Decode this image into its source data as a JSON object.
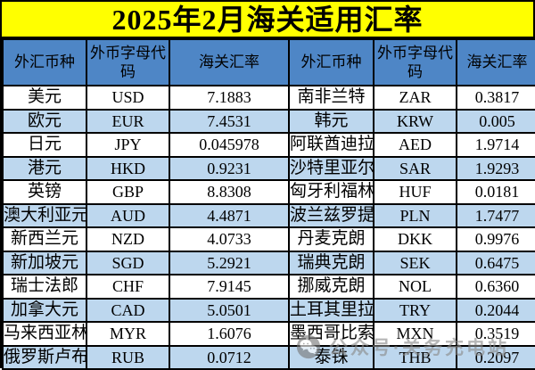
{
  "title": "2025年2月海关适用汇率",
  "header": {
    "currency": "外汇币种",
    "code": "外币字母代码",
    "rate": "海关汇率"
  },
  "rows": [
    {
      "l": [
        "美元",
        "USD",
        "7.1883"
      ],
      "r": [
        "南非兰特",
        "ZAR",
        "0.3817"
      ]
    },
    {
      "l": [
        "欧元",
        "EUR",
        "7.4531"
      ],
      "r": [
        "韩元",
        "KRW",
        "0.005"
      ]
    },
    {
      "l": [
        "日元",
        "JPY",
        "0.045978"
      ],
      "r": [
        "阿联酋迪拉姆",
        "AED",
        "1.9714"
      ]
    },
    {
      "l": [
        "港元",
        "HKD",
        "0.9231"
      ],
      "r": [
        "沙特里亚尔",
        "SAR",
        "1.9293"
      ]
    },
    {
      "l": [
        "英镑",
        "GBP",
        "8.8308"
      ],
      "r": [
        "匈牙利福林",
        "HUF",
        "0.0181"
      ]
    },
    {
      "l": [
        "澳大利亚元",
        "AUD",
        "4.4871"
      ],
      "r": [
        "波兰兹罗提",
        "PLN",
        "1.7477"
      ]
    },
    {
      "l": [
        "新西兰元",
        "NZD",
        "4.0733"
      ],
      "r": [
        "丹麦克朗",
        "DKK",
        "0.9976"
      ]
    },
    {
      "l": [
        "新加坡元",
        "SGD",
        "5.2921"
      ],
      "r": [
        "瑞典克朗",
        "SEK",
        "0.6475"
      ]
    },
    {
      "l": [
        "瑞士法郎",
        "CHF",
        "7.9145"
      ],
      "r": [
        "挪威克朗",
        "NOL",
        "0.6360"
      ]
    },
    {
      "l": [
        "加拿大元",
        "CAD",
        "5.0501"
      ],
      "r": [
        "土耳其里拉",
        "TRY",
        "0.2044"
      ]
    },
    {
      "l": [
        "马来西亚林吉特",
        "MYR",
        "1.6076"
      ],
      "r": [
        "墨西哥比索",
        "MXN",
        "0.3519"
      ]
    },
    {
      "l": [
        "俄罗斯卢布",
        "RUB",
        "0.0712"
      ],
      "r": [
        "泰铢",
        "THB",
        "0.2097"
      ]
    }
  ],
  "watermark": {
    "icon": "wechat-icon",
    "text": "公众号·关务充电站"
  },
  "colors": {
    "title_bg": "#FFFF00",
    "header_bg": "#4E86C6",
    "row_bg": "#FFFFFF",
    "row_alt_bg": "#BDD7EE",
    "border": "#000000",
    "text": "#000000",
    "watermark": "#8A8A8A"
  }
}
